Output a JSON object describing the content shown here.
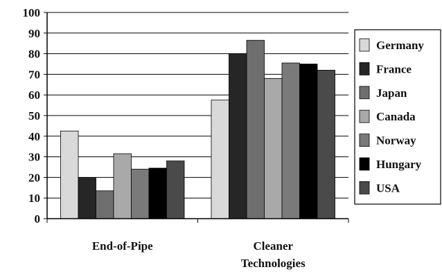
{
  "chart_data": {
    "type": "bar",
    "title": "",
    "xlabel": "",
    "ylabel": "",
    "ylim": [
      0,
      100
    ],
    "yticks": [
      0,
      10,
      20,
      30,
      40,
      50,
      60,
      70,
      80,
      90,
      100
    ],
    "grid": "horizontal",
    "legend_position": "right",
    "categories": [
      {
        "lines": [
          "End-of-Pipe"
        ]
      },
      {
        "lines": [
          "Cleaner",
          "Technologies"
        ]
      }
    ],
    "series": [
      {
        "name": "Germany",
        "color": "#d9d9d9",
        "values": [
          42.5,
          57.5
        ]
      },
      {
        "name": "France",
        "color": "#262626",
        "values": [
          20,
          80
        ]
      },
      {
        "name": "Japan",
        "color": "#6e6e6e",
        "values": [
          13.5,
          86.5
        ]
      },
      {
        "name": "Canada",
        "color": "#a9a9a9",
        "values": [
          31.5,
          68
        ]
      },
      {
        "name": "Norway",
        "color": "#7a7a7a",
        "values": [
          24,
          75.5
        ]
      },
      {
        "name": "Hungary",
        "color": "#000000",
        "values": [
          24.5,
          75
        ]
      },
      {
        "name": "USA",
        "color": "#4a4a4a",
        "values": [
          28,
          72
        ]
      }
    ]
  }
}
